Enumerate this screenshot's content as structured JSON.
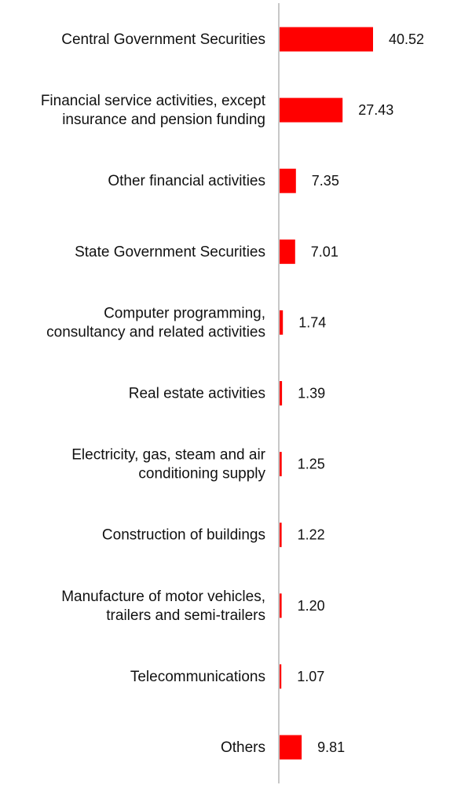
{
  "chart_data": {
    "type": "bar",
    "orientation": "horizontal",
    "categories": [
      [
        "Central Government Securities"
      ],
      [
        "Financial service activities, except",
        "insurance and pension funding"
      ],
      [
        "Other financial activities"
      ],
      [
        "State Government Securities"
      ],
      [
        "Computer programming,",
        "consultancy and related activities"
      ],
      [
        "Real estate activities"
      ],
      [
        "Electricity, gas, steam and air",
        "conditioning supply"
      ],
      [
        "Construction of buildings"
      ],
      [
        "Manufacture of motor vehicles,",
        "trailers and semi-trailers"
      ],
      [
        "Telecommunications"
      ],
      [
        "Others"
      ]
    ],
    "values": [
      40.52,
      27.43,
      7.35,
      7.01,
      1.74,
      1.39,
      1.25,
      1.22,
      1.2,
      1.07,
      9.81
    ],
    "value_labels": [
      "40.52",
      "27.43",
      "7.35",
      "7.01",
      "1.74",
      "1.39",
      "1.25",
      "1.22",
      "1.20",
      "1.07",
      "9.81"
    ],
    "title": "",
    "xlabel": "",
    "ylabel": "",
    "xlim": [
      0,
      42
    ],
    "grid": false,
    "legend": "none",
    "bar_color": "#ff0000",
    "axis_color": "#c8c8c8"
  }
}
